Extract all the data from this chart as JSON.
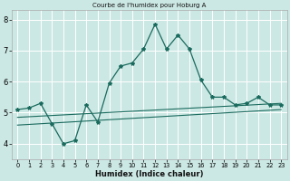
{
  "title": "Courbe de l'humidex pour Hoburg A",
  "xlabel": "Humidex (Indice chaleur)",
  "bg_color": "#cce8e4",
  "grid_color": "#ffffff",
  "line_color": "#1a6b5e",
  "xlim": [
    -0.5,
    23.5
  ],
  "ylim": [
    3.5,
    8.3
  ],
  "yticks": [
    4,
    5,
    6,
    7,
    8
  ],
  "xticks": [
    0,
    1,
    2,
    3,
    4,
    5,
    6,
    7,
    8,
    9,
    10,
    11,
    12,
    13,
    14,
    15,
    16,
    17,
    18,
    19,
    20,
    21,
    22,
    23
  ],
  "series1_x": [
    0,
    1,
    2,
    3,
    4,
    5,
    6,
    7,
    8,
    9,
    10,
    11,
    12,
    13,
    14,
    15,
    16,
    17,
    18,
    19,
    20,
    21,
    22,
    23
  ],
  "series1_y": [
    5.1,
    5.15,
    5.3,
    4.65,
    4.0,
    4.1,
    5.25,
    4.7,
    5.95,
    6.5,
    6.6,
    7.05,
    7.85,
    7.05,
    7.5,
    7.05,
    6.05,
    5.5,
    5.5,
    5.25,
    5.3,
    5.5,
    5.25,
    5.25
  ],
  "series2_x": [
    0,
    23
  ],
  "series2_y": [
    4.85,
    5.3
  ],
  "series3_x": [
    0,
    23
  ],
  "series3_y": [
    4.6,
    5.1
  ]
}
